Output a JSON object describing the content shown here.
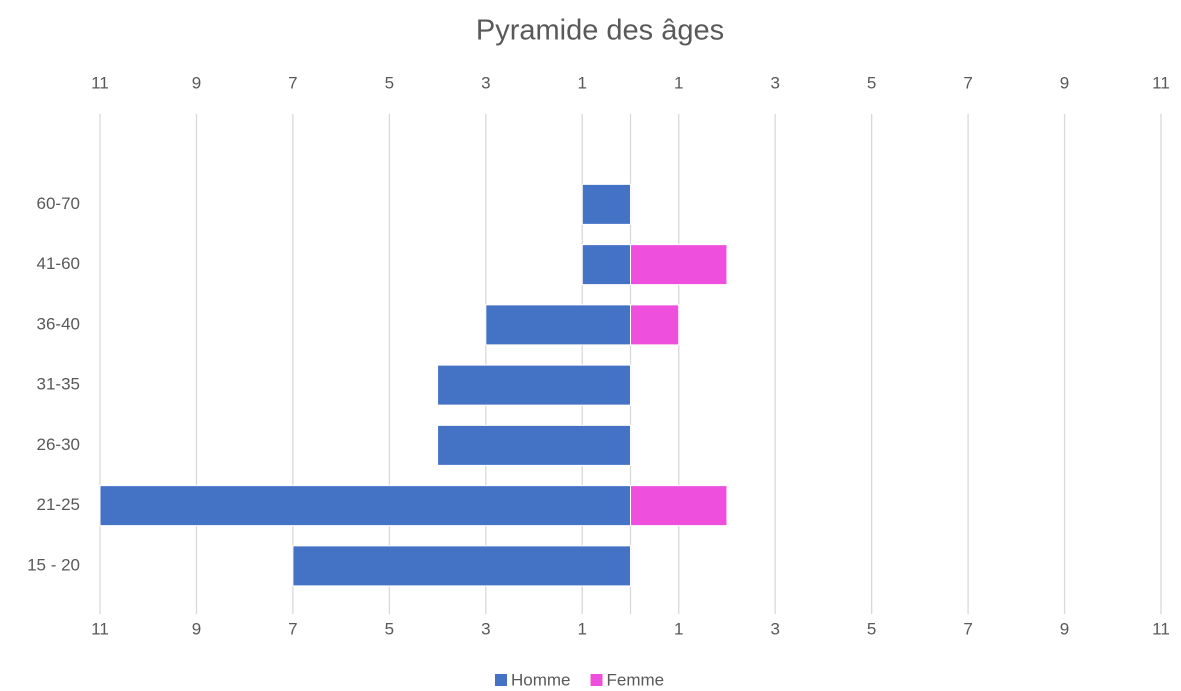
{
  "chart_data": {
    "type": "bar",
    "orientation": "horizontal",
    "stacked": true,
    "title": "Pyramide des âges",
    "categories": [
      "15 - 20",
      "21-25",
      "26-30",
      "31-35",
      "36-40",
      "41-60",
      "60-70",
      null
    ],
    "series": [
      {
        "name": "Homme",
        "color": "#4472c4",
        "values": [
          -7,
          -11,
          -4,
          -4,
          -3,
          -1,
          -1,
          null
        ]
      },
      {
        "name": "Femme",
        "color": "#ee4fdd",
        "values": [
          0,
          2,
          0,
          0,
          1,
          2,
          0,
          null
        ]
      }
    ],
    "xlim": [
      -11,
      11
    ],
    "xticks": [
      {
        "value": -11,
        "label": "11"
      },
      {
        "value": -9,
        "label": "9"
      },
      {
        "value": -7,
        "label": "7"
      },
      {
        "value": -5,
        "label": "5"
      },
      {
        "value": -3,
        "label": "3"
      },
      {
        "value": -1,
        "label": "1"
      },
      1,
      3,
      5,
      7,
      9,
      11
    ],
    "grid": true,
    "legend": "bottom"
  }
}
